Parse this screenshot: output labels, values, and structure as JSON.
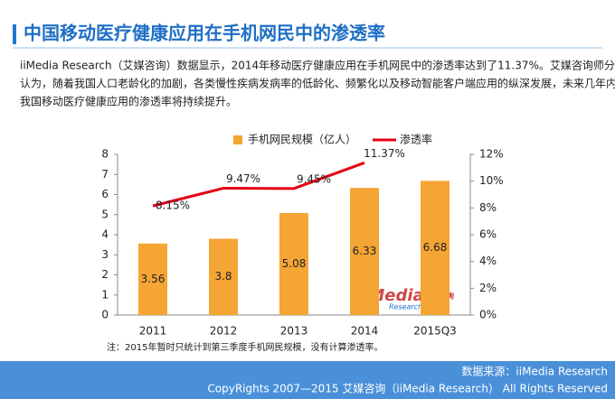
{
  "header": {
    "title": "中国移动医疗健康应用在手机网民中的渗透率"
  },
  "paragraph": [
    "iiMedia Research（艾媒咨询）数据显示，2014年移动医疗健康应用在手机网民中的渗透率达到了11.37%。艾媒咨询师分析",
    "认为，随着我国人口老龄化的加剧，各类慢性疾病发病率的低龄化、频繁化以及移动智能客户端应用的纵深发展，未来几年内",
    "我国移动医疗健康应用的渗透率将持续提升。"
  ],
  "chart_data": {
    "type": "bar",
    "categories": [
      "2011",
      "2012",
      "2013",
      "2014",
      "2015Q3"
    ],
    "series": [
      {
        "name": "手机网民规模（亿人）",
        "type": "bar",
        "color": "#f5a534",
        "values": [
          3.56,
          3.8,
          5.08,
          6.33,
          6.68
        ]
      },
      {
        "name": "渗透率",
        "type": "line",
        "axis": "y2",
        "color": "#e60012",
        "values": [
          8.15,
          9.47,
          9.45,
          11.37,
          null
        ],
        "value_labels": [
          "8.15%",
          "9.47%",
          "9.45%",
          "11.37%",
          null
        ]
      }
    ],
    "ylim": [
      0,
      8
    ],
    "yticks": [
      0,
      1,
      2,
      3,
      4,
      5,
      6,
      7,
      8
    ],
    "y2lim": [
      0,
      12
    ],
    "y2ticks": [
      {
        "value": 0,
        "label": "0%"
      },
      {
        "value": 2,
        "label": "2%"
      },
      {
        "value": 4,
        "label": "4%"
      },
      {
        "value": 6,
        "label": "6%"
      },
      {
        "value": 8,
        "label": "8%"
      },
      {
        "value": 10,
        "label": "10%"
      },
      {
        "value": 12,
        "label": "12%"
      }
    ],
    "grid": false
  },
  "watermark": {
    "brand": "iiMedia",
    "sub": "Research",
    "cn": "艾媒咨询"
  },
  "note": "注：2015年暂时只统计到第三季度手机网民规模，没有计算渗透率。",
  "footer": {
    "source": "数据来源：iiMedia Research",
    "copyright": "CopyRights 2007—2015 艾媒咨询（iiMedia Research） All Rights Reserved"
  }
}
